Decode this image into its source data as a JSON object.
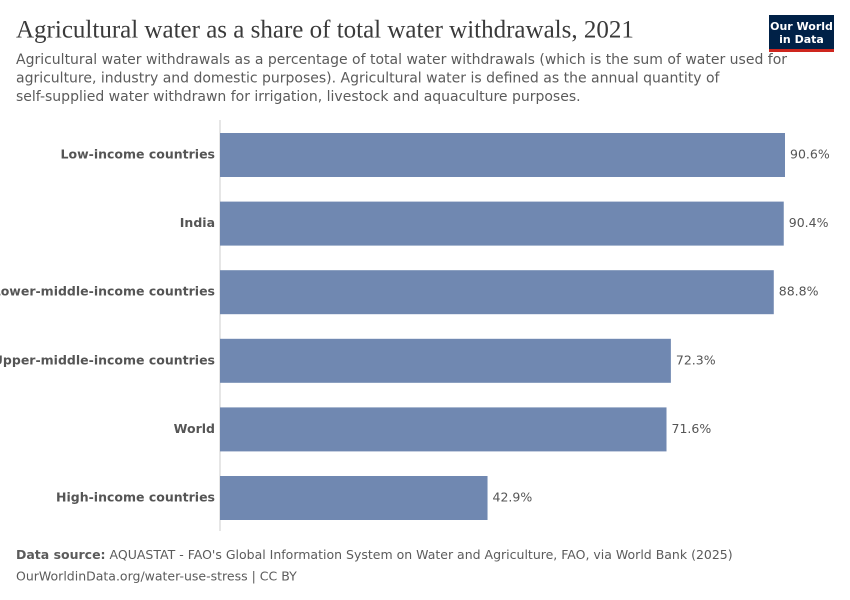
{
  "chart_data": {
    "type": "bar",
    "orientation": "horizontal",
    "title": "Agricultural water as a share of total water withdrawals, 2021",
    "subtitle": [
      "Agricultural water withdrawals as a percentage of total water withdrawals (which is the sum of water used for",
      "agriculture, industry and domestic purposes). Agricultural water is defined as the annual quantity of",
      "self-supplied water withdrawn for irrigation, livestock and aquaculture purposes."
    ],
    "categories": [
      "Low-income countries",
      "India",
      "Lower-middle-income countries",
      "Upper-middle-income countries",
      "World",
      "High-income countries"
    ],
    "values": [
      90.6,
      90.4,
      88.8,
      72.3,
      71.6,
      42.9
    ],
    "value_labels": [
      "90.6%",
      "90.4%",
      "88.8%",
      "72.3%",
      "71.6%",
      "42.9%"
    ],
    "color": "#7088b1",
    "source_label": "Data source:",
    "source": "AQUASTAT - FAO's Global Information System on Water and Agriculture, FAO, via World Bank (2025)",
    "footer": "OurWorldinData.org/water-use-stress | CC BY",
    "logo": [
      "Our World",
      "in Data"
    ]
  }
}
